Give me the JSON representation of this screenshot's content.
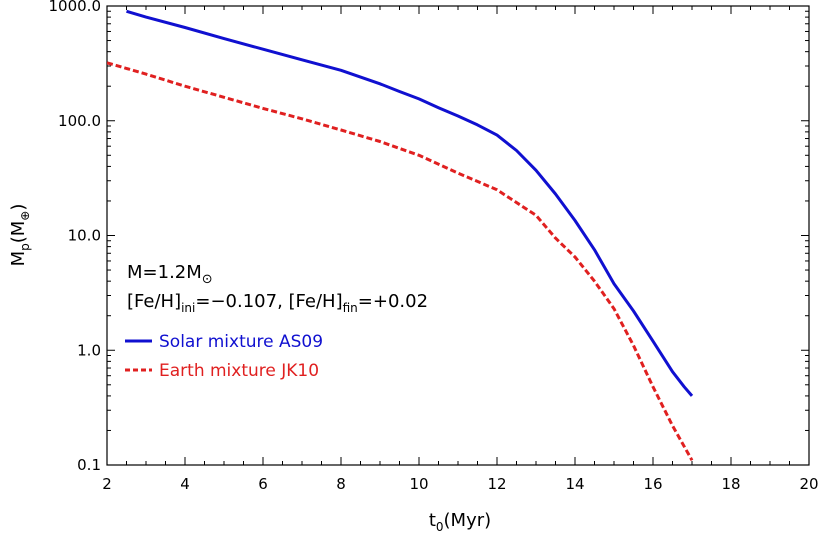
{
  "chart_data": {
    "type": "line",
    "xlabel": {
      "main": "t",
      "sub": "0",
      "tail": "(Myr)"
    },
    "ylabel": {
      "main": "M",
      "sub": "p",
      "tail": "(M",
      "sub2": "⊕",
      "tail2": ")"
    },
    "xlim": [
      2,
      20
    ],
    "ylim": [
      0.1,
      1000
    ],
    "yscale": "log",
    "x_ticks": [
      2,
      4,
      6,
      8,
      10,
      12,
      14,
      16,
      18,
      20
    ],
    "x_tick_labels": [
      "2",
      "4",
      "6",
      "8",
      "10",
      "12",
      "14",
      "16",
      "18",
      "20"
    ],
    "y_ticks": [
      0.1,
      1,
      10,
      100,
      1000
    ],
    "y_tick_labels": [
      "0.1",
      "1.0",
      "10.0",
      "100.0",
      "1000.0"
    ],
    "annotations": {
      "mass": {
        "text": "M=1.2M",
        "sub": "⊙"
      },
      "feh": {
        "part1": "[Fe/H]",
        "sub1": "ini",
        "part2": "=−0.107, [Fe/H]",
        "sub2": "fin",
        "part3": "=+0.02"
      }
    },
    "legend_placement": "left-middle",
    "series": [
      {
        "name": "Solar mixture AS09",
        "color": "#1010d0",
        "style": "solid",
        "x": [
          2.5,
          3,
          4,
          5,
          6,
          7,
          8,
          9,
          9.5,
          10,
          10.5,
          11,
          11.5,
          12,
          12.5,
          13,
          13.5,
          14,
          14.5,
          15,
          15.5,
          16,
          16.5,
          16.8,
          17
        ],
        "y": [
          900,
          800,
          650,
          520,
          420,
          340,
          275,
          210,
          180,
          155,
          130,
          110,
          92,
          75,
          55,
          37,
          23,
          13.5,
          7.5,
          3.8,
          2.2,
          1.2,
          0.65,
          0.48,
          0.4
        ]
      },
      {
        "name": "Earth mixture JK10",
        "color": "#e02020",
        "style": "dashed",
        "x": [
          2,
          3,
          4,
          5,
          6,
          7,
          8,
          9,
          10,
          11,
          12,
          13,
          13.5,
          14,
          14.5,
          15,
          15.5,
          16,
          16.5,
          17
        ],
        "y": [
          320,
          255,
          200,
          160,
          128,
          104,
          83,
          66,
          50,
          35,
          25,
          15,
          9.5,
          6.5,
          4.0,
          2.3,
          1.1,
          0.48,
          0.22,
          0.11
        ]
      }
    ]
  }
}
